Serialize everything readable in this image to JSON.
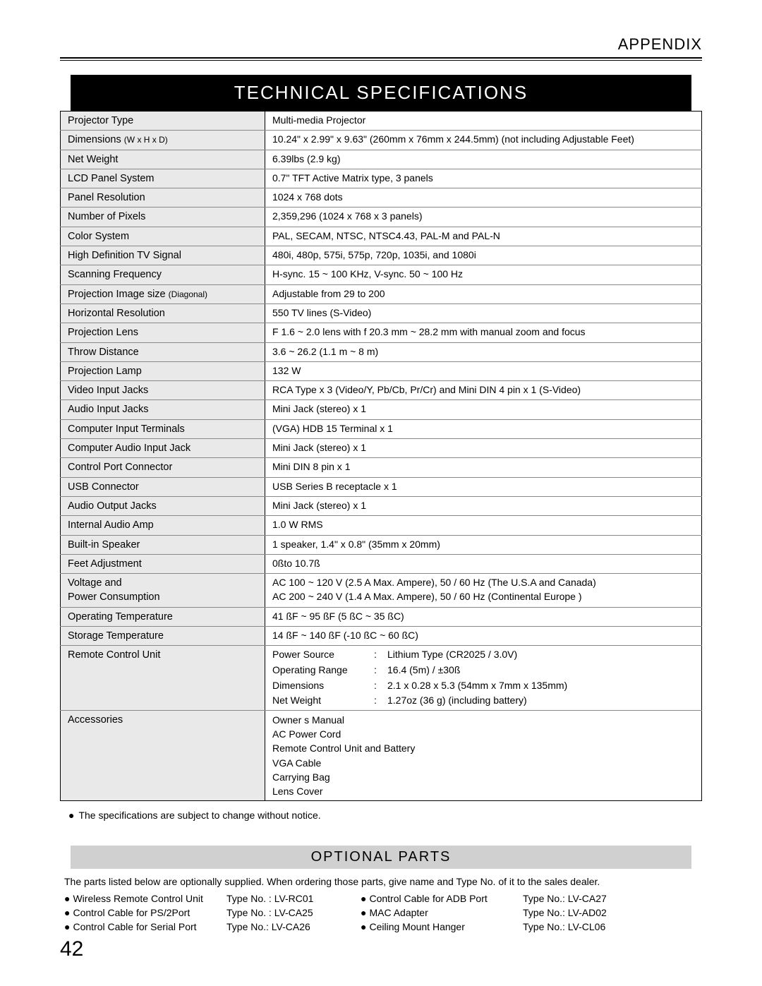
{
  "header": {
    "appendix": "APPENDIX",
    "title": "TECHNICAL SPECIFICATIONS"
  },
  "specs": [
    {
      "label": "Projector Type",
      "value": "Multi-media Projector"
    },
    {
      "label": "Dimensions (W x H x D)",
      "value": "10.24\" x 2.99\" x 9.63\" (260mm x 76mm x 244.5mm) (not including Adjustable Feet)"
    },
    {
      "label": "Net Weight",
      "value": "6.39lbs (2.9 kg)"
    },
    {
      "label": "LCD Panel System",
      "value": "0.7\" TFT Active Matrix type, 3 panels"
    },
    {
      "label": "Panel Resolution",
      "value": "1024 x 768 dots"
    },
    {
      "label": "Number of Pixels",
      "value": "2,359,296 (1024 x 768 x 3 panels)"
    },
    {
      "label": "Color System",
      "value": "PAL, SECAM, NTSC, NTSC4.43, PAL-M and PAL-N"
    },
    {
      "label": "High Definition TV Signal",
      "value": "480i, 480p, 575i, 575p, 720p, 1035i, and 1080i"
    },
    {
      "label": "Scanning Frequency",
      "value": "H-sync. 15 ~ 100 KHz, V-sync. 50 ~ 100 Hz"
    },
    {
      "label": "Projection Image size (Diagonal)",
      "value": "Adjustable from 29  to 200"
    },
    {
      "label": "Horizontal Resolution",
      "value": "550 TV lines (S-Video)"
    },
    {
      "label": "Projection Lens",
      "value": "F 1.6 ~ 2.0 lens with f 20.3 mm ~ 28.2 mm with manual zoom and focus"
    },
    {
      "label": "Throw Distance",
      "value": "3.6  ~ 26.2  (1.1 m ~ 8 m)"
    },
    {
      "label": "Projection Lamp",
      "value": "132 W"
    },
    {
      "label": "Video Input Jacks",
      "value": "RCA Type  x 3 (Video/Y, Pb/Cb, Pr/Cr) and Mini DIN 4 pin x 1 (S-Video)"
    },
    {
      "label": "Audio Input Jacks",
      "value": "Mini Jack (stereo)  x 1"
    },
    {
      "label": "Computer Input Terminals",
      "value": "(VGA) HDB 15 Terminal x 1"
    },
    {
      "label": "Computer Audio Input Jack",
      "value": "Mini Jack (stereo)  x 1"
    },
    {
      "label": "Control Port Connector",
      "value": "Mini DIN 8 pin x 1"
    },
    {
      "label": "USB Connector",
      "value": "USB Series B receptacle x 1"
    },
    {
      "label": "Audio Output Jacks",
      "value": "Mini Jack (stereo)  x 1"
    },
    {
      "label": "Internal Audio Amp",
      "value": "1.0 W RMS"
    },
    {
      "label": "Built-in Speaker",
      "value": "1 speaker, 1.4\" x 0.8\" (35mm x 20mm)"
    },
    {
      "label": "Feet Adjustment",
      "value": "0ßto 10.7ß"
    }
  ],
  "voltage": {
    "label1": "Voltage and",
    "label2": "Power Consumption",
    "line1": "AC 100 ~ 120 V (2.5 A  Max. Ampere), 50 / 60 Hz  (The U.S.A and Canada)",
    "line2": "AC 200 ~ 240 V (1.4 A  Max. Ampere), 50 / 60 Hz  (Continental Europe )"
  },
  "specs2": [
    {
      "label": "Operating Temperature",
      "value": "41 ßF ~ 95 ßF (5 ßC ~ 35 ßC)"
    },
    {
      "label": "Storage Temperature",
      "value": "14 ßF ~ 140 ßF (-10 ßC ~ 60 ßC)"
    }
  ],
  "remote": {
    "label": "Remote Control Unit",
    "rows": [
      {
        "k": "Power Source",
        "v": "Lithium Type (CR2025 / 3.0V)"
      },
      {
        "k": "Operating Range",
        "v": "16.4  (5m) / ±30ß"
      },
      {
        "k": "Dimensions",
        "v": "2.1  x 0.28  x 5.3  (54mm x 7mm x 135mm)"
      },
      {
        "k": "Net Weight",
        "v": "1.27oz (36 g) (including battery)"
      }
    ]
  },
  "accessories": {
    "label": "Accessories",
    "items": [
      "Owner s Manual",
      "AC Power Cord",
      "Remote Control Unit and Battery",
      "VGA Cable",
      "Carrying Bag",
      "Lens Cover"
    ]
  },
  "footnote": "The specifications are subject to change without notice.",
  "optional": {
    "title": "OPTIONAL PARTS",
    "intro": "The parts listed below are optionally supplied.  When ordering those parts, give name and Type No. of it to the sales dealer.",
    "left": [
      {
        "name": "Wireless Remote Control Unit",
        "type": "Type No. : LV-RC01"
      },
      {
        "name": "Control Cable for PS/2Port",
        "type": "Type No. : LV-CA25"
      },
      {
        "name": "Control Cable for Serial Port",
        "type": "Type No.:  LV-CA26"
      }
    ],
    "right": [
      {
        "name": "Control Cable for ADB Port",
        "type": "Type No.:  LV-CA27"
      },
      {
        "name": "MAC Adapter",
        "type": "Type No.:  LV-AD02"
      },
      {
        "name": "Ceiling Mount Hanger",
        "type": "Type No.:  LV-CL06"
      }
    ]
  },
  "page": "42"
}
